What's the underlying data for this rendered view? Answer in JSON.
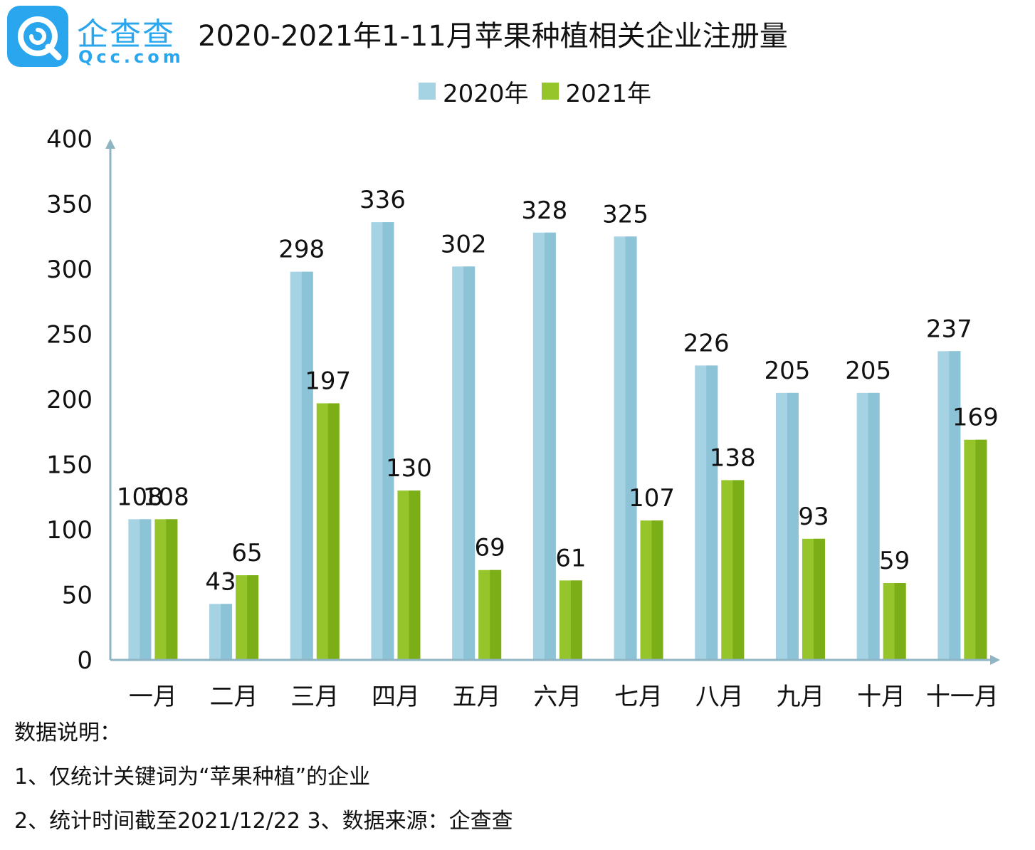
{
  "brand": {
    "name_cn": "企查查",
    "name_en": "Qcc.com",
    "color": "#2aa6ee"
  },
  "title": "2020-2021年1-11月苹果种植相关企业注册量",
  "legend": [
    {
      "label": "2020年",
      "color": "#a6d3e3"
    },
    {
      "label": "2021年",
      "color": "#95c52a"
    }
  ],
  "chart_data": {
    "type": "bar",
    "title": "2020-2021年1-11月苹果种植相关企业注册量",
    "categories": [
      "一月",
      "二月",
      "三月",
      "四月",
      "五月",
      "六月",
      "七月",
      "八月",
      "九月",
      "十月",
      "十一月"
    ],
    "series": [
      {
        "name": "2020年",
        "values": [
          108,
          43,
          298,
          336,
          302,
          328,
          325,
          226,
          205,
          205,
          237
        ]
      },
      {
        "name": "2021年",
        "values": [
          108,
          65,
          197,
          130,
          69,
          61,
          107,
          138,
          93,
          59,
          169
        ]
      }
    ],
    "yticks": [
      0,
      50,
      100,
      150,
      200,
      250,
      300,
      350,
      400
    ],
    "ylim": [
      0,
      400
    ],
    "xlabel": "",
    "ylabel": "",
    "grid": false,
    "legend_position": "top-center"
  },
  "notes": {
    "heading": "数据说明：",
    "line1": "1、仅统计关键词为“苹果种植”的企业",
    "line2": "2、统计时间截至2021/12/22 3、数据来源：企查查"
  }
}
